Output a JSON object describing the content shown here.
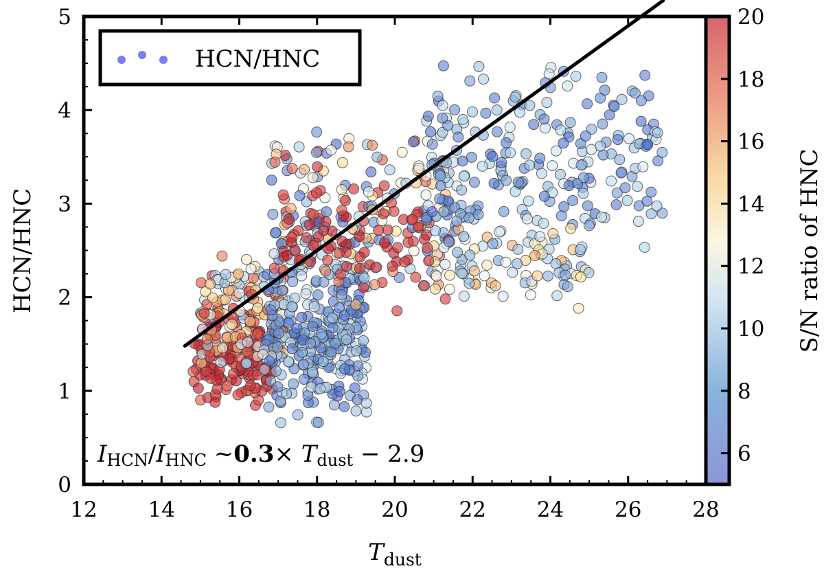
{
  "chart_data": {
    "type": "scatter",
    "xlabel": "T",
    "xlabel_sub": "dust",
    "ylabel": "HCN/HNC",
    "xlim": [
      12,
      28
    ],
    "ylim": [
      0,
      5
    ],
    "xticks": [
      12,
      14,
      16,
      18,
      20,
      22,
      24,
      26,
      28
    ],
    "yticks": [
      0,
      1,
      2,
      3,
      4,
      5
    ],
    "legend": {
      "label": "HCN/HNC",
      "position": "top-left",
      "marker_color": "#7b7ff0"
    },
    "colorbar": {
      "label": "S/N ratio of HNC",
      "range": [
        5,
        20
      ],
      "ticks": [
        6,
        8,
        10,
        12,
        14,
        16,
        18,
        20
      ],
      "colormap": [
        "#4e6fd0",
        "#9ec4e6",
        "#f4f8fa",
        "#fde3a0",
        "#f6a46a",
        "#d9403f",
        "#c2182b"
      ]
    },
    "fit_line": {
      "slope": 0.3,
      "intercept": -2.9,
      "x_range": [
        14.6,
        26.9
      ]
    },
    "annotation": {
      "i1": "I",
      "i1_sub": "HCN",
      "slash": "/",
      "i2": "I",
      "i2_sub": "HNC",
      "sim": " ∼",
      "coef": "0.3",
      "times": "× ",
      "t": "T",
      "t_sub": "dust",
      "rest": " − 2.9"
    },
    "series_clusters": [
      {
        "name": "red low-T cluster",
        "x_range": [
          14.8,
          16.9
        ],
        "y_range": [
          0.75,
          1.95
        ],
        "sn_range": [
          16,
          20
        ],
        "count": 150
      },
      {
        "name": "mixed 16-17 cluster",
        "x_range": [
          15.0,
          17.2
        ],
        "y_range": [
          1.2,
          2.5
        ],
        "sn_range": [
          9,
          18
        ],
        "count": 140
      },
      {
        "name": "blue 17-19 dense cluster",
        "x_range": [
          16.6,
          19.3
        ],
        "y_range": [
          0.6,
          2.6
        ],
        "sn_range": [
          5,
          11
        ],
        "count": 280
      },
      {
        "name": "mid 17-21 scatter",
        "x_range": [
          16.8,
          21.5
        ],
        "y_range": [
          1.7,
          3.9
        ],
        "sn_range": [
          5,
          19
        ],
        "count": 200
      },
      {
        "name": "high-T blue cluster",
        "x_range": [
          20.8,
          26.9
        ],
        "y_range": [
          2.4,
          4.6
        ],
        "sn_range": [
          5,
          11
        ],
        "count": 220
      },
      {
        "name": "high-T light low branch",
        "x_range": [
          21.0,
          25.0
        ],
        "y_range": [
          1.85,
          2.9
        ],
        "sn_range": [
          8,
          15
        ],
        "count": 90
      },
      {
        "name": "scattered red points",
        "x_range": [
          17.0,
          21.0
        ],
        "y_range": [
          2.0,
          3.2
        ],
        "sn_range": [
          17,
          20
        ],
        "count": 60
      }
    ]
  }
}
